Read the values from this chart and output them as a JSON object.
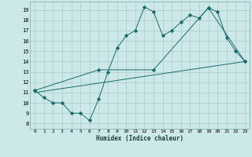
{
  "xlabel": "Humidex (Indice chaleur)",
  "bg_color": "#cce8e8",
  "grid_color": "#aacccc",
  "line_color": "#1a6b6b",
  "xlim": [
    -0.5,
    23.5
  ],
  "ylim": [
    7.5,
    19.8
  ],
  "xticks": [
    0,
    1,
    2,
    3,
    4,
    5,
    6,
    7,
    8,
    9,
    10,
    11,
    12,
    13,
    14,
    15,
    16,
    17,
    18,
    19,
    20,
    21,
    22,
    23
  ],
  "yticks": [
    8,
    9,
    10,
    11,
    12,
    13,
    14,
    15,
    16,
    17,
    18,
    19
  ],
  "series1_x": [
    0,
    1,
    2,
    3,
    4,
    5,
    6,
    7,
    8,
    9,
    10,
    11,
    12,
    13,
    14,
    15,
    16,
    17,
    18,
    19,
    20,
    21,
    22,
    23
  ],
  "series1_y": [
    11.2,
    10.5,
    10.0,
    10.0,
    9.0,
    9.0,
    8.3,
    10.4,
    13.0,
    15.3,
    16.5,
    17.0,
    19.3,
    18.8,
    16.5,
    17.0,
    17.8,
    18.5,
    18.2,
    19.2,
    18.8,
    16.3,
    15.0,
    14.0
  ],
  "series2_x": [
    0,
    7,
    13,
    19,
    23
  ],
  "series2_y": [
    11.2,
    13.2,
    13.2,
    19.2,
    14.0
  ],
  "series3_x": [
    0,
    23
  ],
  "series3_y": [
    11.0,
    14.0
  ]
}
